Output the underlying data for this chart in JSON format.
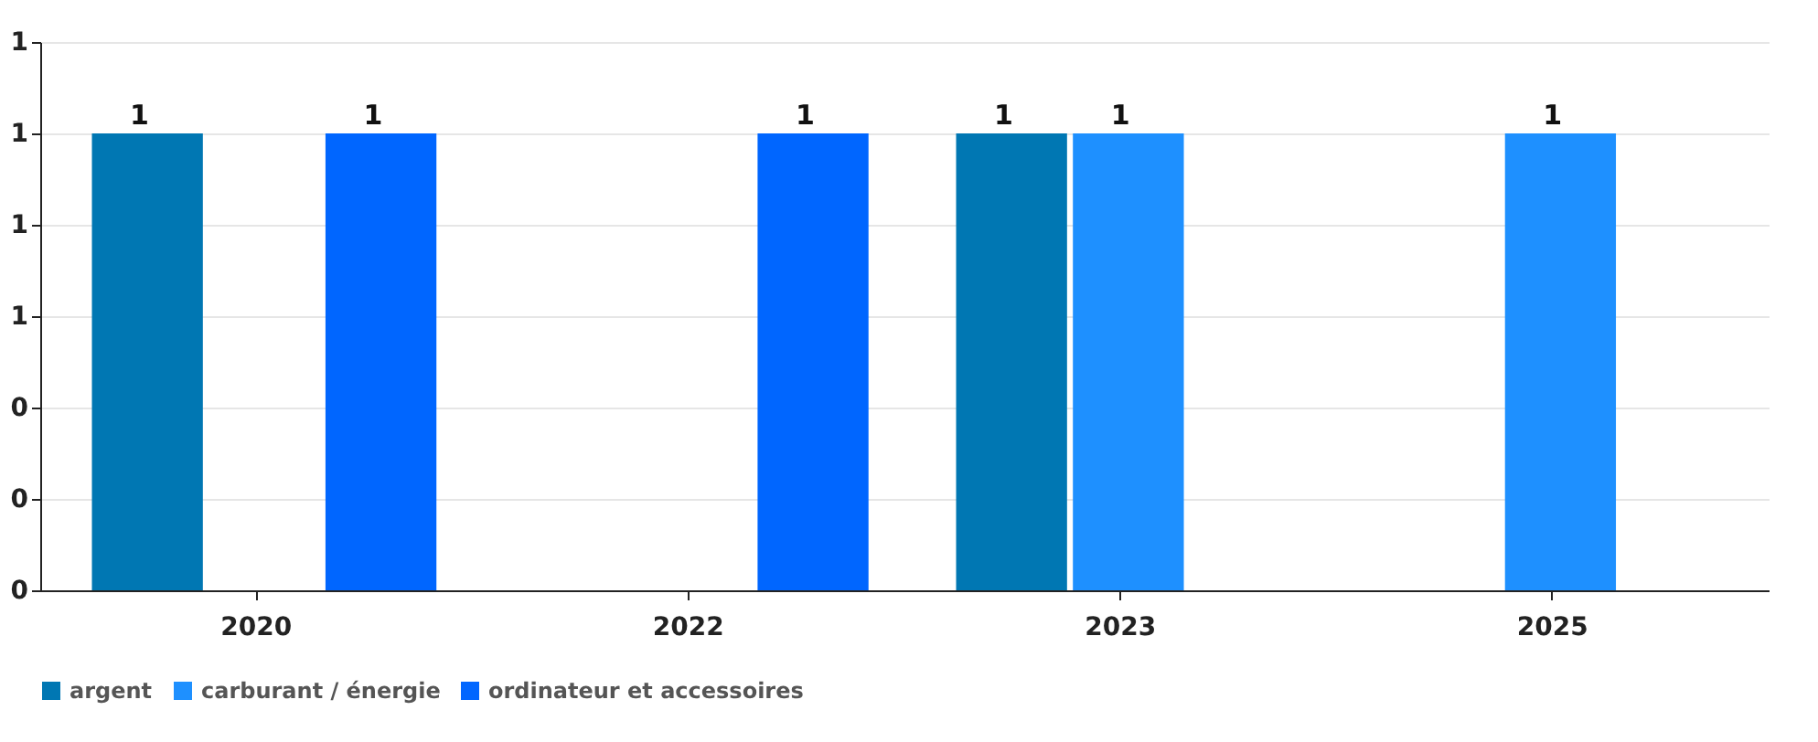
{
  "chart_data": {
    "type": "bar",
    "categories": [
      "2020",
      "2022",
      "2023",
      "2025"
    ],
    "series": [
      {
        "name": "argent",
        "color": "#0077b3",
        "values": [
          1,
          null,
          1,
          null
        ]
      },
      {
        "name": "carburant / énergie",
        "color": "#1e90ff",
        "values": [
          null,
          null,
          1,
          1
        ]
      },
      {
        "name": "ordinateur et accessoires",
        "color": "#0066ff",
        "values": [
          1,
          1,
          null,
          null
        ]
      }
    ],
    "ylim": [
      0,
      1.2
    ],
    "yticks": [
      {
        "value": 0,
        "label": "0"
      },
      {
        "value": 0.2,
        "label": "0"
      },
      {
        "value": 0.4,
        "label": "0"
      },
      {
        "value": 0.6,
        "label": "1"
      },
      {
        "value": 0.8,
        "label": "1"
      },
      {
        "value": 1,
        "label": "1"
      },
      {
        "value": 1.2,
        "label": "1"
      }
    ],
    "grid": "y",
    "legend": "bottom",
    "data_labels": true
  }
}
